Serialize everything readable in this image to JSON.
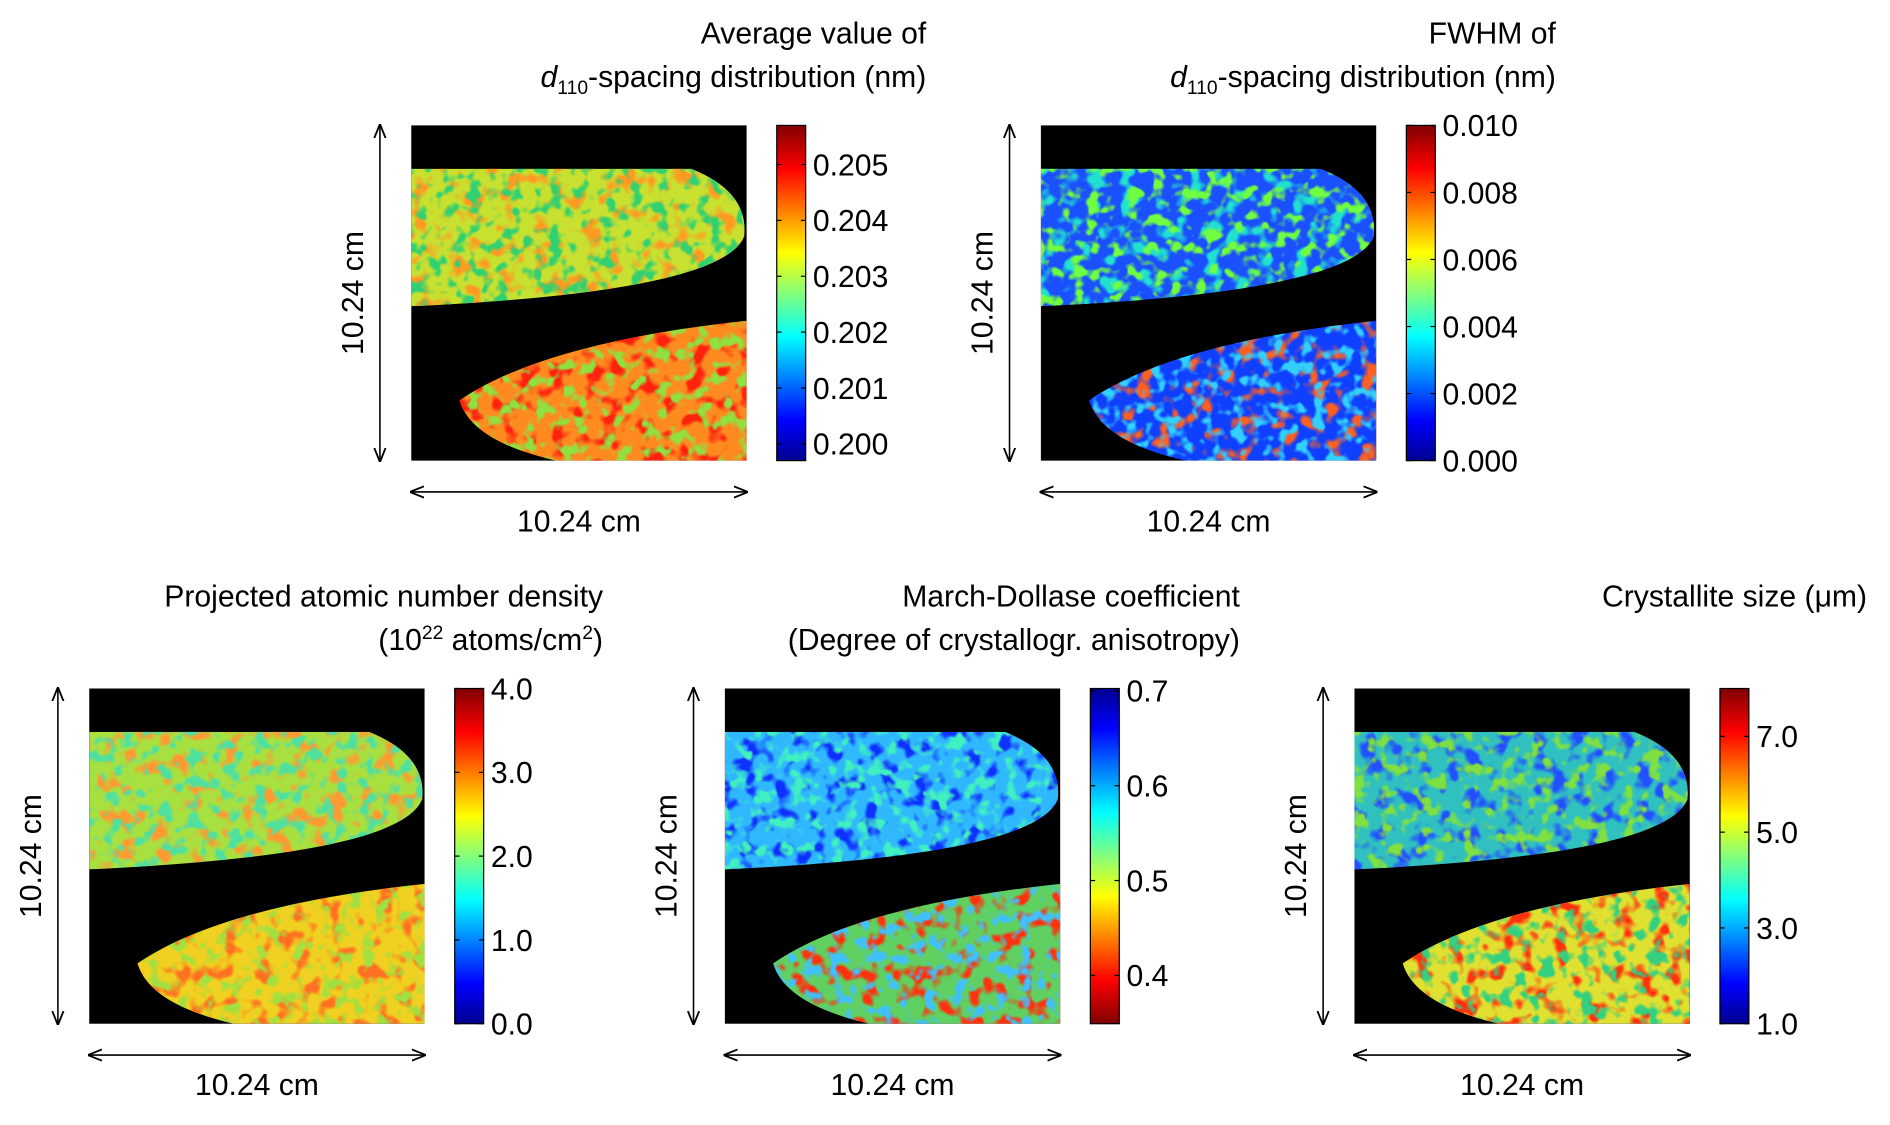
{
  "panels": [
    {
      "title": [
        [
          "Average value of"
        ],
        [
          "d",
          "110",
          "-spacing distribution (nm)"
        ]
      ],
      "colorbar_range": [
        0.1997,
        0.2057
      ],
      "colorbar_ticks": [
        {
          "value": 0.2,
          "label": "0.200"
        },
        {
          "value": 0.201,
          "label": "0.201"
        },
        {
          "value": 0.202,
          "label": "0.202"
        },
        {
          "value": 0.203,
          "label": "0.203"
        },
        {
          "value": 0.204,
          "label": "0.204"
        },
        {
          "value": 0.205,
          "label": "0.205"
        }
      ],
      "width_label": "10.24 cm",
      "height_label": "10.24 cm"
    },
    {
      "title": [
        [
          "FWHM of"
        ],
        [
          "d",
          "110",
          "-spacing distribution (nm)"
        ]
      ],
      "colorbar_range": [
        0,
        0.01
      ],
      "colorbar_ticks": [
        {
          "value": 0,
          "label": "0.000"
        },
        {
          "value": 0.002,
          "label": "0.002"
        },
        {
          "value": 0.004,
          "label": "0.004"
        },
        {
          "value": 0.006,
          "label": "0.006"
        },
        {
          "value": 0.008,
          "label": "0.008"
        },
        {
          "value": 0.01,
          "label": "0.010"
        }
      ],
      "width_label": "10.24 cm",
      "height_label": "10.24 cm"
    },
    {
      "title": [
        [
          "Projected atomic number density"
        ],
        [
          "(10",
          "22",
          " atoms/cm",
          "2",
          ")"
        ]
      ],
      "colorbar_range": [
        0,
        4
      ],
      "colorbar_ticks": [
        {
          "value": 0,
          "label": "0.0"
        },
        {
          "value": 1,
          "label": "1.0"
        },
        {
          "value": 2,
          "label": "2.0"
        },
        {
          "value": 3,
          "label": "3.0"
        },
        {
          "value": 4,
          "label": "4.0"
        }
      ],
      "width_label": "10.24 cm",
      "height_label": "10.24 cm"
    },
    {
      "title": [
        [
          "March-Dollase coefficient"
        ],
        [
          "(Degree of crystallogr. anisotropy)"
        ]
      ],
      "colorbar_range": [
        0.349,
        0.7025
      ],
      "colorbar_reversed": true,
      "colorbar_ticks": [
        {
          "value": 0.4,
          "label": "0.4"
        },
        {
          "value": 0.5,
          "label": "0.5"
        },
        {
          "value": 0.6,
          "label": "0.6"
        },
        {
          "value": 0.7,
          "label": "0.7"
        }
      ],
      "width_label": "10.24 cm",
      "height_label": "10.24 cm"
    },
    {
      "title": [
        [
          "Crystallite size (μm)"
        ]
      ],
      "colorbar_range": [
        1,
        8
      ],
      "colorbar_ticks": [
        {
          "value": 1,
          "label": "1.0"
        },
        {
          "value": 3,
          "label": "3.0"
        },
        {
          "value": 5,
          "label": "5.0"
        },
        {
          "value": 7,
          "label": "7.0"
        }
      ],
      "width_label": "10.24 cm",
      "height_label": "10.24 cm"
    }
  ]
}
